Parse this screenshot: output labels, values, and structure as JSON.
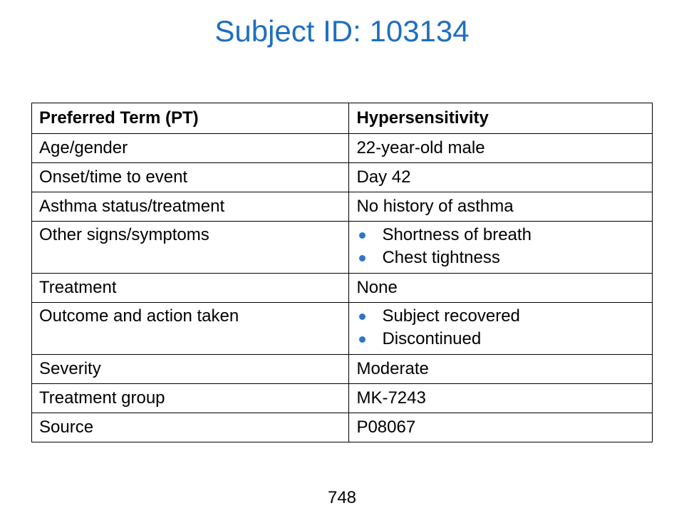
{
  "title": "Subject ID: 103134",
  "table": {
    "header": {
      "col1": "Preferred Term (PT)",
      "col2": "Hypersensitivity"
    },
    "rows": [
      {
        "label": "Age/gender",
        "value": "22-year-old male"
      },
      {
        "label": "Onset/time to event",
        "value": "Day 42"
      },
      {
        "label": "Asthma status/treatment",
        "value": "No history of asthma"
      },
      {
        "label": "Other signs/symptoms",
        "items": [
          "Shortness of breath",
          "Chest tightness"
        ]
      },
      {
        "label": "Treatment",
        "value": "None"
      },
      {
        "label": "Outcome and action taken",
        "items": [
          "Subject recovered",
          "Discontinued"
        ]
      },
      {
        "label": "Severity",
        "value": "Moderate"
      },
      {
        "label": "Treatment group",
        "value": "MK-7243"
      },
      {
        "label": "Source",
        "value": "P08067"
      }
    ]
  },
  "page_number": "748",
  "colors": {
    "title": "#1f6fc0",
    "bullet": "#2e74c8"
  }
}
